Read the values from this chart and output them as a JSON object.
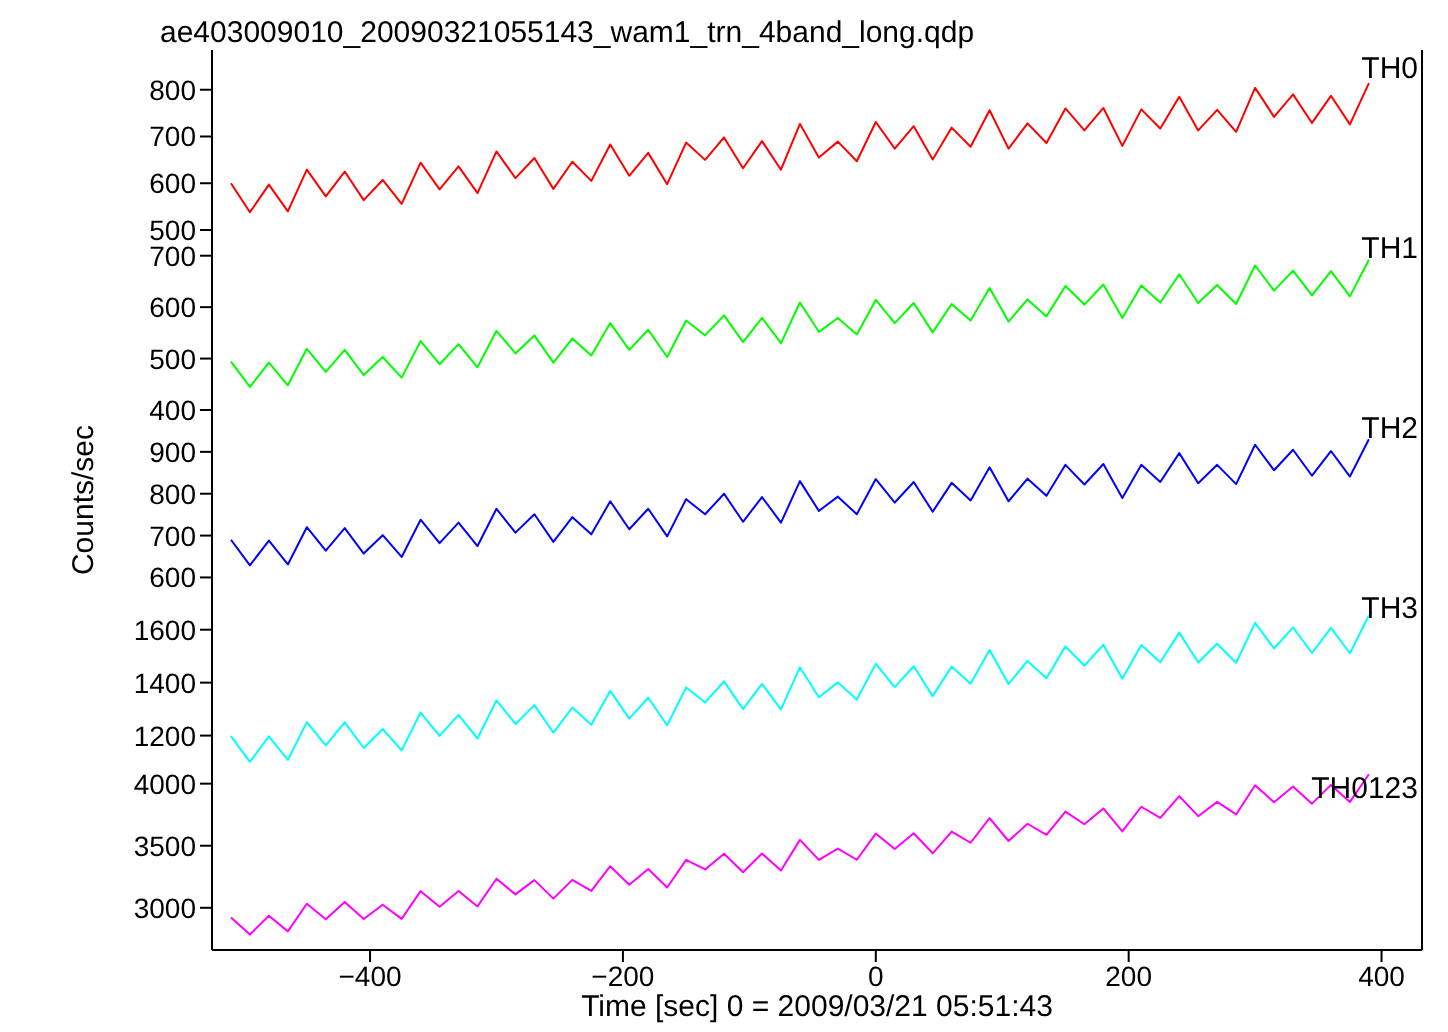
{
  "chart_data": [
    {
      "type": "line",
      "title": "ae403009010_20090321055143_wam1_trn_4band_long.qdp",
      "xlim": [
        -525,
        432
      ],
      "xticks": [
        -400,
        -200,
        0,
        200,
        400
      ],
      "ylim": [
        500,
        885
      ],
      "yticks": [
        500,
        600,
        700,
        800
      ],
      "tick_labels": "y",
      "x": [
        -510,
        -495,
        -480,
        -465,
        -450,
        -435,
        -420,
        -405,
        -390,
        -375,
        -360,
        -345,
        -330,
        -315,
        -300,
        -285,
        -270,
        -255,
        -240,
        -225,
        -210,
        -195,
        -180,
        -165,
        -150,
        -135,
        -120,
        -105,
        -90,
        -75,
        -60,
        -45,
        -30,
        -15,
        0,
        15,
        30,
        45,
        60,
        75,
        90,
        105,
        120,
        135,
        150,
        165,
        180,
        195,
        210,
        225,
        240,
        255,
        270,
        285,
        300,
        315,
        330,
        345,
        360,
        375,
        390
      ],
      "series": [
        {
          "name": "TH0",
          "color": "#ff0000",
          "values": [
            600,
            538,
            597,
            540,
            629,
            572,
            625,
            564,
            607,
            556,
            644,
            587,
            636,
            579,
            668,
            611,
            654,
            588,
            646,
            605,
            683,
            616,
            665,
            598,
            687,
            650,
            698,
            632,
            690,
            629,
            727,
            655,
            689,
            647,
            731,
            674,
            722,
            651,
            719,
            678,
            756,
            674,
            728,
            686,
            760,
            713,
            761,
            680,
            758,
            717,
            785,
            713,
            757,
            710,
            804,
            742,
            790,
            729,
            787,
            726,
            814
          ]
        }
      ]
    },
    {
      "type": "line",
      "xlim": [
        -525,
        432
      ],
      "xticks": [
        -400,
        -200,
        0,
        200,
        400
      ],
      "ylim": [
        400,
        750
      ],
      "yticks": [
        400,
        500,
        600,
        700
      ],
      "tick_labels": "y",
      "x": [
        -510,
        -495,
        -480,
        -465,
        -450,
        -435,
        -420,
        -405,
        -390,
        -375,
        -360,
        -345,
        -330,
        -315,
        -300,
        -285,
        -270,
        -255,
        -240,
        -225,
        -210,
        -195,
        -180,
        -165,
        -150,
        -135,
        -120,
        -105,
        -90,
        -75,
        -60,
        -45,
        -30,
        -15,
        0,
        15,
        30,
        45,
        60,
        75,
        90,
        105,
        120,
        135,
        150,
        165,
        180,
        195,
        210,
        225,
        240,
        255,
        270,
        285,
        300,
        315,
        330,
        345,
        360,
        375,
        390
      ],
      "series": [
        {
          "name": "TH1",
          "color": "#00ff00",
          "values": [
            494,
            445,
            492,
            448,
            519,
            474,
            517,
            468,
            503,
            463,
            534,
            489,
            528,
            483,
            554,
            510,
            545,
            492,
            539,
            506,
            569,
            517,
            556,
            503,
            574,
            545,
            584,
            532,
            579,
            530,
            609,
            552,
            579,
            547,
            614,
            569,
            608,
            551,
            606,
            574,
            637,
            572,
            615,
            582,
            641,
            605,
            644,
            579,
            642,
            609,
            664,
            608,
            643,
            606,
            681,
            632,
            671,
            623,
            670,
            621,
            692
          ]
        }
      ]
    },
    {
      "type": "line",
      "ylabel": "Counts/sec",
      "xlim": [
        -525,
        432
      ],
      "xticks": [
        -400,
        -200,
        0,
        200,
        400
      ],
      "ylim": [
        570,
        1000
      ],
      "yticks": [
        600,
        700,
        800,
        900
      ],
      "tick_labels": "y",
      "x": [
        -510,
        -495,
        -480,
        -465,
        -450,
        -435,
        -420,
        -405,
        -390,
        -375,
        -360,
        -345,
        -330,
        -315,
        -300,
        -285,
        -270,
        -255,
        -240,
        -225,
        -210,
        -195,
        -180,
        -165,
        -150,
        -135,
        -120,
        -105,
        -90,
        -75,
        -60,
        -45,
        -30,
        -15,
        0,
        15,
        30,
        45,
        60,
        75,
        90,
        105,
        120,
        135,
        150,
        165,
        180,
        195,
        210,
        225,
        240,
        255,
        270,
        285,
        300,
        315,
        330,
        345,
        360,
        375,
        390
      ],
      "series": [
        {
          "name": "TH2",
          "color": "#0000ff",
          "values": [
            690,
            629,
            688,
            631,
            720,
            664,
            718,
            657,
            701,
            649,
            738,
            682,
            731,
            675,
            764,
            707,
            751,
            685,
            744,
            703,
            782,
            715,
            764,
            698,
            787,
            751,
            800,
            733,
            792,
            731,
            830,
            759,
            793,
            751,
            835,
            779,
            828,
            757,
            826,
            784,
            863,
            782,
            836,
            795,
            869,
            822,
            871,
            790,
            869,
            828,
            897,
            825,
            869,
            823,
            917,
            856,
            905,
            843,
            902,
            841,
            930
          ]
        }
      ]
    },
    {
      "type": "line",
      "xlim": [
        -525,
        432
      ],
      "xticks": [
        -400,
        -200,
        0,
        200,
        400
      ],
      "ylim": [
        1070,
        1750
      ],
      "yticks": [
        1200,
        1400,
        1600
      ],
      "tick_labels": "y",
      "x": [
        -510,
        -495,
        -480,
        -465,
        -450,
        -435,
        -420,
        -405,
        -390,
        -375,
        -360,
        -345,
        -330,
        -315,
        -300,
        -285,
        -270,
        -255,
        -240,
        -225,
        -210,
        -195,
        -180,
        -165,
        -150,
        -135,
        -120,
        -105,
        -90,
        -75,
        -60,
        -45,
        -30,
        -15,
        0,
        15,
        30,
        45,
        60,
        75,
        90,
        105,
        120,
        135,
        150,
        165,
        180,
        195,
        210,
        225,
        240,
        255,
        270,
        285,
        300,
        315,
        330,
        345,
        360,
        375,
        390
      ],
      "series": [
        {
          "name": "TH3",
          "color": "#00ffff",
          "values": [
            1198,
            1101,
            1197,
            1108,
            1251,
            1163,
            1250,
            1153,
            1225,
            1144,
            1287,
            1199,
            1278,
            1189,
            1333,
            1244,
            1315,
            1211,
            1306,
            1241,
            1369,
            1264,
            1343,
            1239,
            1382,
            1325,
            1405,
            1300,
            1395,
            1299,
            1458,
            1345,
            1401,
            1336,
            1471,
            1383,
            1462,
            1349,
            1461,
            1396,
            1523,
            1395,
            1482,
            1417,
            1537,
            1464,
            1543,
            1415,
            1542,
            1477,
            1589,
            1476,
            1547,
            1475,
            1626,
            1529,
            1609,
            1512,
            1607,
            1511,
            1654
          ]
        }
      ]
    },
    {
      "type": "line",
      "xlabel": "Time [sec] 0 = 2009/03/21 05:51:43",
      "xlim": [
        -525,
        432
      ],
      "xticks": [
        -400,
        -200,
        0,
        200,
        400
      ],
      "ylim": [
        2660,
        4110
      ],
      "yticks": [
        3000,
        3500,
        4000
      ],
      "x": [
        -510,
        -495,
        -480,
        -465,
        -450,
        -435,
        -420,
        -405,
        -390,
        -375,
        -360,
        -345,
        -330,
        -315,
        -300,
        -285,
        -270,
        -255,
        -240,
        -225,
        -210,
        -195,
        -180,
        -165,
        -150,
        -135,
        -120,
        -105,
        -90,
        -75,
        -60,
        -45,
        -30,
        -15,
        0,
        15,
        30,
        45,
        60,
        75,
        90,
        105,
        120,
        135,
        150,
        165,
        180,
        195,
        210,
        225,
        240,
        255,
        270,
        285,
        300,
        315,
        330,
        345,
        360,
        375,
        390
      ],
      "series": [
        {
          "name": "TH0123",
          "color": "#ff00ff",
          "values": [
            2922,
            2785,
            2936,
            2810,
            3033,
            2908,
            3047,
            2910,
            3025,
            2911,
            3134,
            3009,
            3136,
            3011,
            3234,
            3108,
            3223,
            3074,
            3225,
            3136,
            3335,
            3185,
            3312,
            3163,
            3386,
            3309,
            3436,
            3286,
            3437,
            3300,
            3547,
            3386,
            3477,
            3387,
            3598,
            3473,
            3600,
            3439,
            3614,
            3524,
            3723,
            3538,
            3677,
            3588,
            3775,
            3673,
            3800,
            3615,
            3814,
            3725,
            3900,
            3738,
            3853,
            3752,
            3987,
            3850,
            3977,
            3839,
            3990,
            3853,
            4076
          ]
        }
      ]
    }
  ]
}
